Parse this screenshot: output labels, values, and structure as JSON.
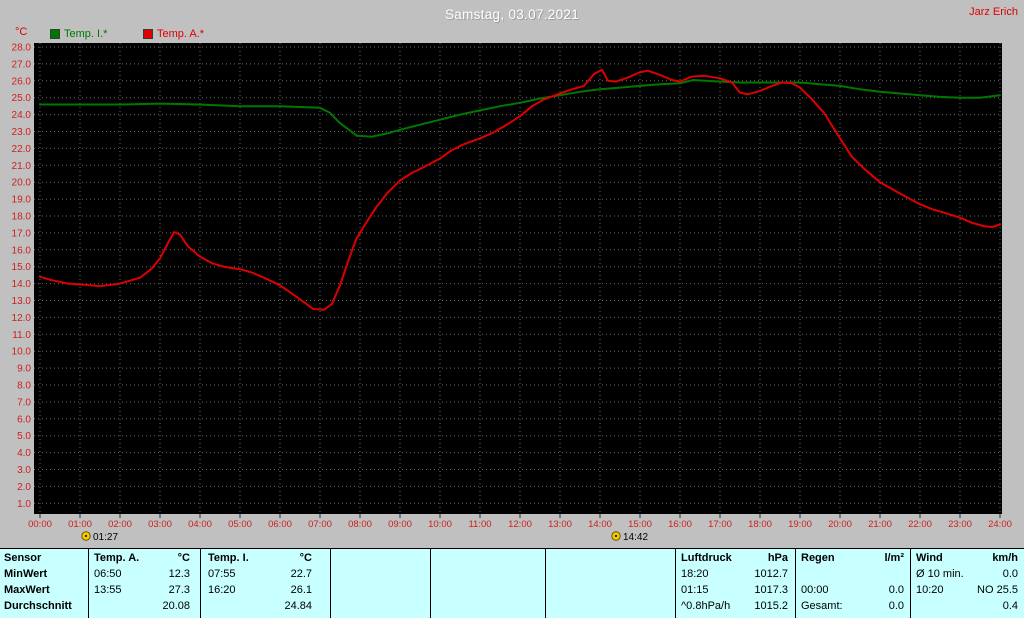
{
  "header": {
    "title": "Samstag, 03.07.2021",
    "user": "Jarz Erich",
    "unit_label": "°C"
  },
  "legend": [
    {
      "label": "Temp. I.*",
      "color": "#007800"
    },
    {
      "label": "Temp. A.*",
      "color": "#e00000"
    }
  ],
  "markers": [
    {
      "time": "01:27",
      "hour": 1.45
    },
    {
      "time": "14:42",
      "hour": 14.7
    }
  ],
  "chart_data": {
    "type": "line",
    "title": "Samstag, 03.07.2021",
    "xlabel": "time",
    "ylabel": "°C",
    "ylim": [
      1,
      28
    ],
    "y_tick_step": 1.0,
    "x_ticks": [
      "00:00",
      "01:00",
      "02:00",
      "03:00",
      "04:00",
      "05:00",
      "06:00",
      "07:00",
      "08:00",
      "09:00",
      "10:00",
      "11:00",
      "12:00",
      "13:00",
      "14:00",
      "15:00",
      "16:00",
      "17:00",
      "18:00",
      "19:00",
      "20:00",
      "21:00",
      "22:00",
      "23:00",
      "24:00"
    ],
    "plot_bg": "#000000",
    "grid_color": "#6a6a6a",
    "axis_label_color": "#cc2020",
    "grid": true,
    "legend_position": "top-left",
    "series": [
      {
        "name": "Temp. I.*",
        "color": "#007800",
        "points": [
          [
            0,
            24.6
          ],
          [
            1,
            24.6
          ],
          [
            2,
            24.6
          ],
          [
            3,
            24.65
          ],
          [
            4,
            24.6
          ],
          [
            5,
            24.5
          ],
          [
            6,
            24.5
          ],
          [
            6.5,
            24.45
          ],
          [
            7,
            24.4
          ],
          [
            7.25,
            24.1
          ],
          [
            7.5,
            23.5
          ],
          [
            7.92,
            22.75
          ],
          [
            8.3,
            22.7
          ],
          [
            8.7,
            22.9
          ],
          [
            9,
            23.1
          ],
          [
            9.5,
            23.4
          ],
          [
            10,
            23.7
          ],
          [
            10.5,
            24.0
          ],
          [
            11,
            24.25
          ],
          [
            11.5,
            24.5
          ],
          [
            12,
            24.7
          ],
          [
            12.5,
            24.95
          ],
          [
            13,
            25.15
          ],
          [
            13.5,
            25.35
          ],
          [
            14,
            25.5
          ],
          [
            14.5,
            25.6
          ],
          [
            15,
            25.7
          ],
          [
            15.5,
            25.8
          ],
          [
            16,
            25.85
          ],
          [
            16.33,
            26.05
          ],
          [
            17,
            25.95
          ],
          [
            17.5,
            25.9
          ],
          [
            18,
            25.9
          ],
          [
            18.5,
            25.9
          ],
          [
            19,
            25.9
          ],
          [
            19.5,
            25.8
          ],
          [
            20,
            25.7
          ],
          [
            20.5,
            25.5
          ],
          [
            21,
            25.35
          ],
          [
            21.5,
            25.25
          ],
          [
            22,
            25.15
          ],
          [
            22.5,
            25.05
          ],
          [
            23,
            25.0
          ],
          [
            23.5,
            25.0
          ],
          [
            24,
            25.15
          ]
        ]
      },
      {
        "name": "Temp. A.*",
        "color": "#dd0000",
        "points": [
          [
            0,
            14.4
          ],
          [
            0.3,
            14.2
          ],
          [
            0.7,
            14.0
          ],
          [
            1,
            13.95
          ],
          [
            1.5,
            13.85
          ],
          [
            2,
            14.0
          ],
          [
            2.5,
            14.35
          ],
          [
            2.8,
            14.9
          ],
          [
            3,
            15.5
          ],
          [
            3.2,
            16.4
          ],
          [
            3.35,
            17.05
          ],
          [
            3.5,
            16.9
          ],
          [
            3.7,
            16.2
          ],
          [
            4,
            15.6
          ],
          [
            4.3,
            15.2
          ],
          [
            4.6,
            15.0
          ],
          [
            5,
            14.85
          ],
          [
            5.3,
            14.65
          ],
          [
            5.6,
            14.35
          ],
          [
            6,
            13.9
          ],
          [
            6.3,
            13.4
          ],
          [
            6.6,
            12.9
          ],
          [
            6.83,
            12.5
          ],
          [
            7.1,
            12.45
          ],
          [
            7.3,
            12.8
          ],
          [
            7.5,
            13.9
          ],
          [
            7.7,
            15.3
          ],
          [
            7.9,
            16.6
          ],
          [
            8.1,
            17.4
          ],
          [
            8.4,
            18.5
          ],
          [
            8.7,
            19.4
          ],
          [
            9,
            20.1
          ],
          [
            9.3,
            20.55
          ],
          [
            9.6,
            20.9
          ],
          [
            10,
            21.4
          ],
          [
            10.3,
            21.9
          ],
          [
            10.6,
            22.25
          ],
          [
            11,
            22.6
          ],
          [
            11.3,
            22.9
          ],
          [
            11.6,
            23.3
          ],
          [
            12,
            23.9
          ],
          [
            12.3,
            24.5
          ],
          [
            12.6,
            24.9
          ],
          [
            13,
            25.25
          ],
          [
            13.3,
            25.5
          ],
          [
            13.6,
            25.7
          ],
          [
            13.85,
            26.4
          ],
          [
            14.05,
            26.65
          ],
          [
            14.2,
            26.0
          ],
          [
            14.4,
            25.95
          ],
          [
            14.7,
            26.2
          ],
          [
            15,
            26.5
          ],
          [
            15.2,
            26.6
          ],
          [
            15.5,
            26.35
          ],
          [
            15.8,
            26.05
          ],
          [
            16,
            25.95
          ],
          [
            16.3,
            26.25
          ],
          [
            16.6,
            26.3
          ],
          [
            17,
            26.15
          ],
          [
            17.3,
            25.9
          ],
          [
            17.5,
            25.3
          ],
          [
            17.7,
            25.2
          ],
          [
            18,
            25.4
          ],
          [
            18.3,
            25.7
          ],
          [
            18.55,
            25.9
          ],
          [
            18.8,
            25.85
          ],
          [
            19,
            25.6
          ],
          [
            19.3,
            24.9
          ],
          [
            19.6,
            24.1
          ],
          [
            20,
            22.6
          ],
          [
            20.3,
            21.5
          ],
          [
            20.6,
            20.8
          ],
          [
            21,
            20.0
          ],
          [
            21.3,
            19.6
          ],
          [
            21.6,
            19.2
          ],
          [
            22,
            18.7
          ],
          [
            22.3,
            18.4
          ],
          [
            22.6,
            18.2
          ],
          [
            23,
            17.9
          ],
          [
            23.3,
            17.6
          ],
          [
            23.6,
            17.4
          ],
          [
            23.8,
            17.35
          ],
          [
            24,
            17.5
          ]
        ]
      }
    ]
  },
  "table": {
    "sensor_header": "Sensor",
    "row_labels": {
      "min": "MinWert",
      "max": "MaxWert",
      "avg": "Durchschnitt"
    },
    "temp_a": {
      "header": "Temp. A.",
      "unit": "°C",
      "min_time": "06:50",
      "min": "12.3",
      "max_time": "13:55",
      "max": "27.3",
      "avg": "20.08"
    },
    "temp_i": {
      "header": "Temp. I.",
      "unit": "°C",
      "min_time": "07:55",
      "min": "22.7",
      "max_time": "16:20",
      "max": "26.1",
      "avg": "24.84"
    },
    "pressure": {
      "header": "Luftdruck",
      "unit": "hPa",
      "min_time": "18:20",
      "min": "1012.7",
      "max_time": "01:15",
      "max": "1017.3",
      "avg_label": "^0.8hPa/h",
      "avg": "1015.2"
    },
    "rain": {
      "header": "Regen",
      "unit": "l/m²",
      "max_time": "00:00",
      "max": "0.0",
      "total_label": "Gesamt:",
      "total": "0.0"
    },
    "wind": {
      "header": "Wind",
      "unit": "km/h",
      "min_label": "Ø 10 min.",
      "min": "0.0",
      "max_time": "10:20",
      "max": "NO 25.5",
      "avg": "0.4"
    }
  }
}
